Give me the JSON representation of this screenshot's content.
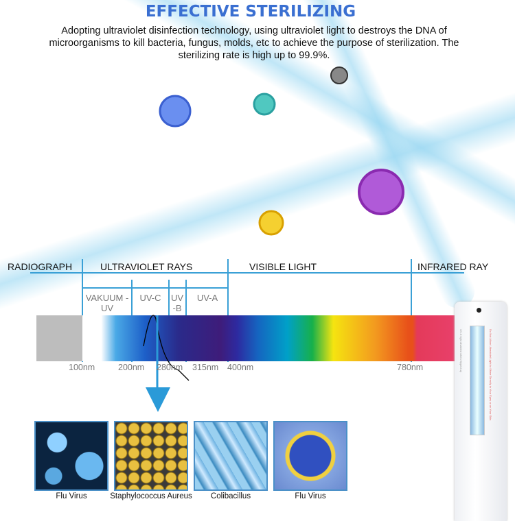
{
  "header": {
    "title": "EFFECTIVE STERILIZING",
    "description": "Adopting ultraviolet disinfection technology, using ultraviolet light to destroys the DNA of microorganisms to kill bacteria, fungus, molds, etc to achieve the purpose of sterilization. The sterilizing rate is high up to 99.9%."
  },
  "spectrum": {
    "regions": [
      "RADIOGRAPH",
      "ULTRAVIOLET RAYS",
      "VISIBLE LIGHT",
      "INFRARED RAY"
    ],
    "uv_bands": [
      "VAKUUM -UV",
      "UV-C",
      "UV -B",
      "UV-A"
    ],
    "wavelengths": [
      "100nm",
      "200nm",
      "280nm",
      "315nm",
      "400nm",
      "780nm"
    ]
  },
  "microbes": [
    {
      "label": "Flu Virus"
    },
    {
      "label": "Staphylococcus Aureus"
    },
    {
      "label": "Colibacillus"
    },
    {
      "label": "Flu Virus"
    }
  ],
  "device": {
    "warning": "Do Not Allow Ultraviolet Light to Shine Directly in Your Eyes or on Your Skin",
    "note": "UV-C light disabled when flipped up"
  }
}
